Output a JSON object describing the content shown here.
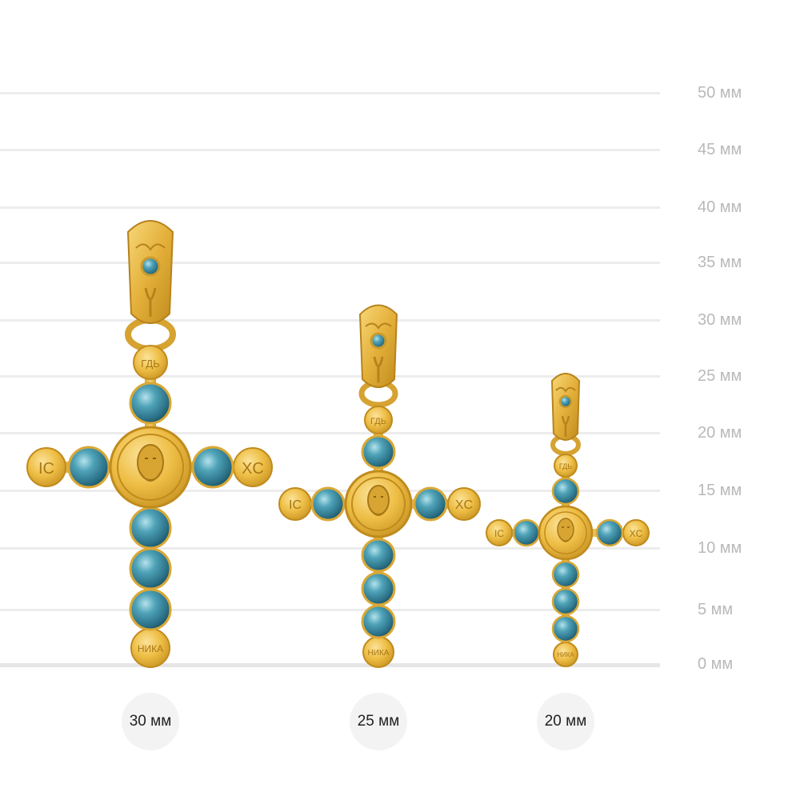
{
  "scale": {
    "ticks": [
      {
        "label": "50 мм"
      },
      {
        "label": "45 мм"
      },
      {
        "label": "40 мм"
      },
      {
        "label": "35 мм"
      },
      {
        "label": "30 мм"
      },
      {
        "label": "25 мм"
      },
      {
        "label": "20 мм"
      },
      {
        "label": "15 мм"
      },
      {
        "label": "10 мм"
      },
      {
        "label": "5 мм"
      },
      {
        "label": "0 мм"
      }
    ]
  },
  "crosses": [
    {
      "size_label": "30 мм",
      "medallion_letters": {
        "left": "IC",
        "right": "XC",
        "top": "ГДЬ",
        "bottom": "НИКА"
      }
    },
    {
      "size_label": "25 мм",
      "medallion_letters": {
        "left": "IC",
        "right": "XC",
        "top": "ГДЬ",
        "bottom": "НИКА"
      }
    },
    {
      "size_label": "20 мм",
      "medallion_letters": {
        "left": "IC",
        "right": "XC",
        "top": "ГДЬ",
        "bottom": "НИКА"
      }
    }
  ],
  "colors": {
    "gold": "#e9b93c",
    "gold_dark": "#b98a1e",
    "gold_light": "#f8dc82",
    "stone": "#3f8fa6",
    "stone_dark": "#1f5f73",
    "stone_light": "#9fd4e0"
  }
}
